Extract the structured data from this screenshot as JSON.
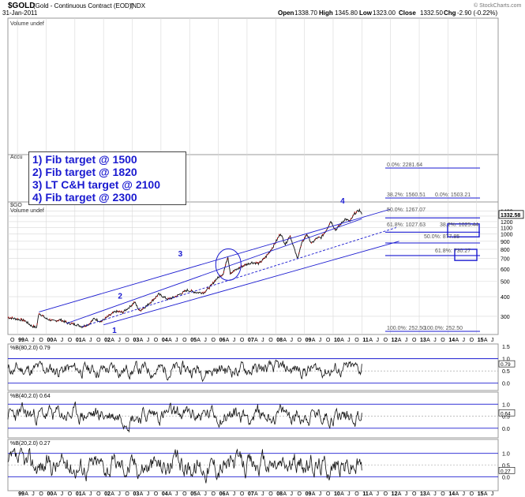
{
  "header": {
    "symbol": "$GOLD",
    "desc": "(Gold - Continuous Contract (EOD))",
    "exchange": "INDX",
    "date": "31-Jan-2011",
    "open_label": "Open",
    "open": "1338.70",
    "high_label": "High",
    "high": "1345.80",
    "low_label": "Low",
    "low": "1323.00",
    "close_label": "Close",
    "close": "1332.50",
    "chg_label": "Chg",
    "chg": "-2.90 (-0.22%)",
    "watermark": "© StockCharts.com"
  },
  "volume_panel": {
    "label": "Volume undef"
  },
  "accum_panel": {
    "label": "Accu"
  },
  "legend": [
    "1) Fib target @ 1500",
    "2) Fib target @ 1820",
    "3) LT C&H target @ 2100",
    "4) Fib target @ 2300"
  ],
  "price_panel": {
    "label": "$GO",
    "sublabel": "Volume undef",
    "last_value": "1332.58",
    "y_ticks": [
      "1400",
      "1300",
      "1200",
      "1100",
      "1000",
      "900",
      "800",
      "700",
      "600",
      "500",
      "400",
      "300"
    ]
  },
  "fib_labels": [
    "0.0%: 2281.64",
    "38.2%: 1560.51",
    "0.0%: 1503.21",
    "50.0%: 1267.07",
    "61.8%: 1027.63",
    "38.2%: 1025.44",
    "50.0%: 877.85",
    "61.8%: 730.27",
    "100.0%: 252.50",
    "100.0%: 252.50"
  ],
  "wave_labels": [
    "1",
    "2",
    "3",
    "4"
  ],
  "x_axis": {
    "years": [
      "99",
      "00",
      "01",
      "02",
      "03",
      "04",
      "05",
      "06",
      "07",
      "08",
      "09",
      "10",
      "11",
      "12",
      "13",
      "14",
      "15"
    ],
    "month_letters": [
      "A",
      "J",
      "O"
    ]
  },
  "indicators": [
    {
      "label": "%B(80,2.0) 0.79",
      "ticks": [
        "1.5",
        "1.0",
        "0.5",
        "0.0"
      ],
      "value": "0.79"
    },
    {
      "label": "%B(40,2.0) 0.64",
      "ticks": [
        "1.0",
        "0.5",
        "0.0"
      ],
      "value": "0.64"
    },
    {
      "label": "%B(20,2.0) 0.27",
      "ticks": [
        "1.0",
        "0.5",
        "0.0"
      ],
      "value": "0.27"
    }
  ],
  "colors": {
    "blue": "#1a1ad0",
    "price_line": "#111111",
    "up_bar": "#cc0000",
    "grid": "#d8d8d8"
  },
  "chart_data": {
    "type": "line",
    "title": "$GOLD (Gold - Continuous Contract (EOD)) INDX",
    "scale": "log",
    "ylim": [
      230,
      1600
    ],
    "x_range": [
      "1998-09",
      "2015-10"
    ],
    "series": [
      {
        "name": "$GOLD",
        "points": [
          [
            "1998-09",
            295
          ],
          [
            "1999-01",
            288
          ],
          [
            "1999-04",
            282
          ],
          [
            "1999-07",
            260
          ],
          [
            "1999-09",
            255
          ],
          [
            "1999-10",
            315
          ],
          [
            "2000-01",
            290
          ],
          [
            "2000-04",
            280
          ],
          [
            "2000-07",
            285
          ],
          [
            "2000-10",
            272
          ],
          [
            "2001-02",
            265
          ],
          [
            "2001-04",
            258
          ],
          [
            "2001-07",
            268
          ],
          [
            "2001-09",
            290
          ],
          [
            "2001-12",
            278
          ],
          [
            "2002-03",
            300
          ],
          [
            "2002-06",
            322
          ],
          [
            "2002-09",
            318
          ],
          [
            "2002-12",
            345
          ],
          [
            "2003-02",
            370
          ],
          [
            "2003-04",
            325
          ],
          [
            "2003-07",
            350
          ],
          [
            "2003-10",
            385
          ],
          [
            "2003-12",
            415
          ],
          [
            "2004-04",
            385
          ],
          [
            "2004-07",
            400
          ],
          [
            "2004-12",
            440
          ],
          [
            "2005-04",
            425
          ],
          [
            "2005-07",
            425
          ],
          [
            "2005-10",
            470
          ],
          [
            "2005-12",
            515
          ],
          [
            "2006-03",
            560
          ],
          [
            "2006-05",
            720
          ],
          [
            "2006-06",
            565
          ],
          [
            "2006-09",
            600
          ],
          [
            "2006-12",
            635
          ],
          [
            "2007-03",
            660
          ],
          [
            "2007-06",
            650
          ],
          [
            "2007-09",
            720
          ],
          [
            "2007-12",
            835
          ],
          [
            "2008-03",
            1010
          ],
          [
            "2008-05",
            860
          ],
          [
            "2008-07",
            980
          ],
          [
            "2008-10",
            700
          ],
          [
            "2008-12",
            880
          ],
          [
            "2009-02",
            1000
          ],
          [
            "2009-04",
            870
          ],
          [
            "2009-06",
            940
          ],
          [
            "2009-08",
            950
          ],
          [
            "2009-10",
            1050
          ],
          [
            "2009-12",
            1210
          ],
          [
            "2010-02",
            1060
          ],
          [
            "2010-04",
            1150
          ],
          [
            "2010-06",
            1250
          ],
          [
            "2010-08",
            1200
          ],
          [
            "2010-10",
            1350
          ],
          [
            "2010-12",
            1420
          ],
          [
            "2011-01",
            1332.5
          ]
        ]
      }
    ],
    "fib_levels": [
      {
        "label": "0.0%: 2281.64",
        "value": 2281.64
      },
      {
        "label": "38.2%: 1560.51",
        "value": 1560.51
      },
      {
        "label": "0.0%: 1503.21",
        "value": 1503.21
      },
      {
        "label": "50.0%: 1267.07",
        "value": 1267.07
      },
      {
        "label": "61.8%: 1027.63",
        "value": 1027.63
      },
      {
        "label": "38.2%: 1025.44",
        "value": 1025.44
      },
      {
        "label": "50.0%: 877.85",
        "value": 877.85
      },
      {
        "label": "61.8%: 730.27",
        "value": 730.27
      },
      {
        "label": "100.0%: 252.50",
        "value": 252.5
      }
    ],
    "indicator_series": [
      {
        "name": "%B(80,2.0)",
        "last": 0.79
      },
      {
        "name": "%B(40,2.0)",
        "last": 0.64
      },
      {
        "name": "%B(20,2.0)",
        "last": 0.27
      }
    ]
  }
}
